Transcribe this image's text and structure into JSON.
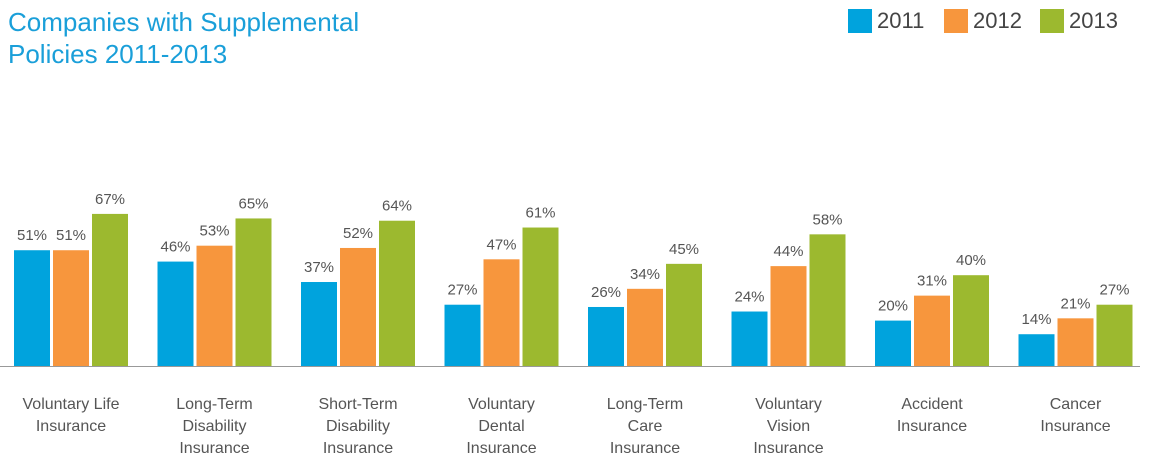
{
  "chart_data": {
    "type": "bar",
    "title": "Companies with Supplemental\nPolicies 2011-2013",
    "categories": [
      "Voluntary Life\nInsurance",
      "Long-Term\nDisability\nInsurance",
      "Short-Term\nDisability\nInsurance",
      "Voluntary\nDental\nInsurance",
      "Long-Term\nCare\nInsurance",
      "Voluntary\nVision\nInsurance",
      "Accident\nInsurance",
      "Cancer\nInsurance"
    ],
    "series": [
      {
        "name": "2011",
        "color": "#00a3dd",
        "values": [
          51,
          46,
          37,
          27,
          26,
          24,
          20,
          14
        ],
        "value_labels": [
          "51%",
          "46%",
          "37%",
          "27%",
          "26%",
          "24%",
          "20%",
          "14%"
        ]
      },
      {
        "name": "2012",
        "color": "#f7963d",
        "values": [
          51,
          53,
          52,
          47,
          34,
          44,
          31,
          21
        ],
        "value_labels": [
          "51%",
          "53%",
          "52%",
          "47%",
          "34%",
          "44%",
          "31%",
          "21%"
        ]
      },
      {
        "name": "2013",
        "color": "#9cb92f",
        "values": [
          67,
          65,
          64,
          61,
          45,
          58,
          40,
          27
        ],
        "value_labels": [
          "67%",
          "65%",
          "64%",
          "61%",
          "45%",
          "58%",
          "40%",
          "27%"
        ]
      }
    ],
    "ylim": [
      0,
      100
    ],
    "legend": "top-right"
  }
}
